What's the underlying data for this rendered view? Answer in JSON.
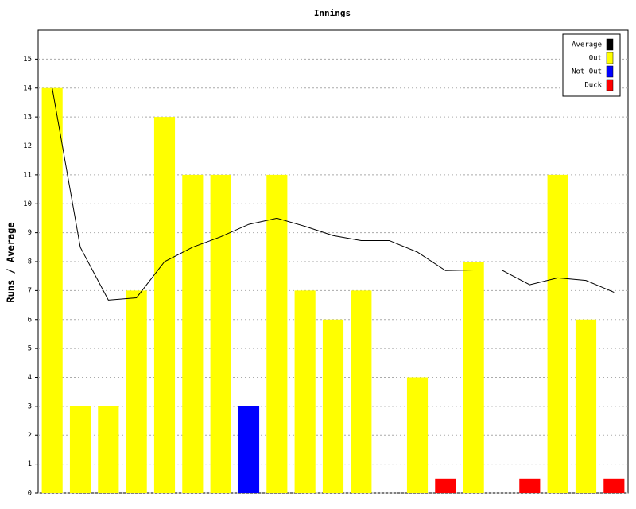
{
  "chart_data": {
    "type": "bar",
    "title": "Innings",
    "y_label": "Runs / Average",
    "categories": [
      null,
      null,
      null,
      null,
      null,
      null,
      null,
      null,
      null,
      null,
      null,
      null,
      null,
      null,
      null,
      null,
      null,
      null,
      null,
      null,
      null
    ],
    "series": [
      {
        "name": "Average",
        "type": "line",
        "color": "#000000",
        "values": [
          14,
          8.5,
          6.67,
          6.75,
          8,
          8.5,
          8.86,
          9.29,
          9.5,
          9.22,
          8.9,
          8.73,
          8.73,
          8.33,
          7.69,
          7.71,
          7.71,
          7.2,
          7.44,
          7.35,
          6.94
        ]
      },
      {
        "name": "Out",
        "type": "bar",
        "color": "#ffff00",
        "values": [
          14,
          3,
          3,
          7,
          13,
          11,
          11,
          null,
          11,
          7,
          6,
          7,
          null,
          4,
          null,
          8,
          null,
          null,
          11,
          6,
          null
        ]
      },
      {
        "name": "Not Out",
        "type": "bar",
        "color": "#0000ff",
        "values": [
          null,
          null,
          null,
          null,
          null,
          null,
          null,
          3,
          null,
          null,
          null,
          null,
          null,
          null,
          null,
          null,
          null,
          null,
          null,
          null,
          null
        ]
      },
      {
        "name": "Duck",
        "type": "bar",
        "color": "#ff0000",
        "values": [
          null,
          null,
          null,
          null,
          null,
          null,
          null,
          null,
          null,
          null,
          null,
          null,
          null,
          null,
          0.5,
          null,
          null,
          0.5,
          null,
          null,
          0.5
        ]
      }
    ],
    "ylim": [
      0,
      16
    ],
    "yticks": [
      0,
      1,
      2,
      3,
      4,
      5,
      6,
      7,
      8,
      9,
      10,
      11,
      12,
      13,
      14,
      15
    ],
    "grid": true,
    "legend": "top-right"
  }
}
